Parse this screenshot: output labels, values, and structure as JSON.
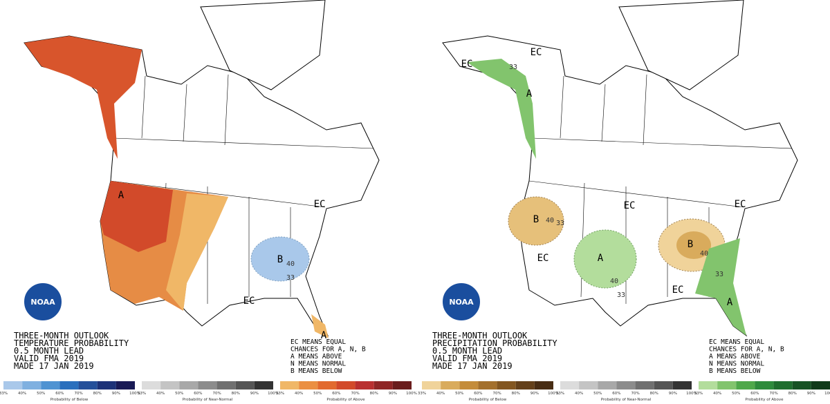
{
  "panels": [
    {
      "logo": "NOAA",
      "header": [
        "THREE-MONTH OUTLOOK",
        "TEMPERATURE PROBABILITY",
        "0.5 MONTH LEAD",
        "VALID FMA 2019",
        "MADE 17 JAN 2019"
      ],
      "legend": [
        "EC MEANS EQUAL",
        "CHANCES FOR A, N, B",
        "A MEANS ABOVE",
        "N MEANS NORMAL",
        "B MEANS BELOW"
      ],
      "labels": [
        "A",
        "B",
        "40",
        "33",
        "EC",
        "EC",
        "A"
      ],
      "colorbars": [
        {
          "caption": "Probability of Below",
          "colors": [
            "#a9c8ea",
            "#7fb0e0",
            "#4f93d2",
            "#2a6fbd",
            "#25509a",
            "#1d3278",
            "#191a55"
          ]
        },
        {
          "caption": "Probability of Near-Normal",
          "colors": [
            "#dcdcdc",
            "#c4c4c4",
            "#a8a8a8",
            "#8c8c8c",
            "#707070",
            "#555555",
            "#333333"
          ]
        },
        {
          "caption": "Probability of Above",
          "colors": [
            "#f0b767",
            "#eb8f42",
            "#e26a2e",
            "#d24a2a",
            "#b93030",
            "#8f2626",
            "#6a1d1d"
          ]
        }
      ]
    },
    {
      "logo": "NOAA",
      "header": [
        "THREE-MONTH OUTLOOK",
        "PRECIPITATION PROBABILITY",
        "0.5 MONTH LEAD",
        "VALID FMA 2019",
        "MADE 17 JAN 2019"
      ],
      "legend": [
        "EC MEANS EQUAL",
        "CHANCES FOR A, N, B",
        "A MEANS ABOVE",
        "N MEANS NORMAL",
        "B MEANS BELOW"
      ],
      "labels": [
        "EC",
        "33",
        "EC",
        "A",
        "EC",
        "EC",
        "B",
        "40",
        "33",
        "B",
        "40",
        "A",
        "EC",
        "40",
        "33",
        "EC",
        "33",
        "A"
      ],
      "colorbars": [
        {
          "caption": "Probability of Below",
          "colors": [
            "#f0d39a",
            "#d9ab5c",
            "#c48c3a",
            "#a4702c",
            "#835620",
            "#64401a",
            "#482d14"
          ]
        },
        {
          "caption": "Probability of Near-Normal",
          "colors": [
            "#dcdcdc",
            "#c4c4c4",
            "#a8a8a8",
            "#8c8c8c",
            "#707070",
            "#555555",
            "#333333"
          ]
        },
        {
          "caption": "Probability of Above",
          "colors": [
            "#b3dd9c",
            "#82c46d",
            "#4fa84a",
            "#2e8b3c",
            "#1f6e2e",
            "#175324",
            "#103b1a"
          ]
        }
      ]
    }
  ],
  "scale_ticks": [
    "33%",
    "40%",
    "50%",
    "60%",
    "70%",
    "80%",
    "90%",
    "100%"
  ]
}
